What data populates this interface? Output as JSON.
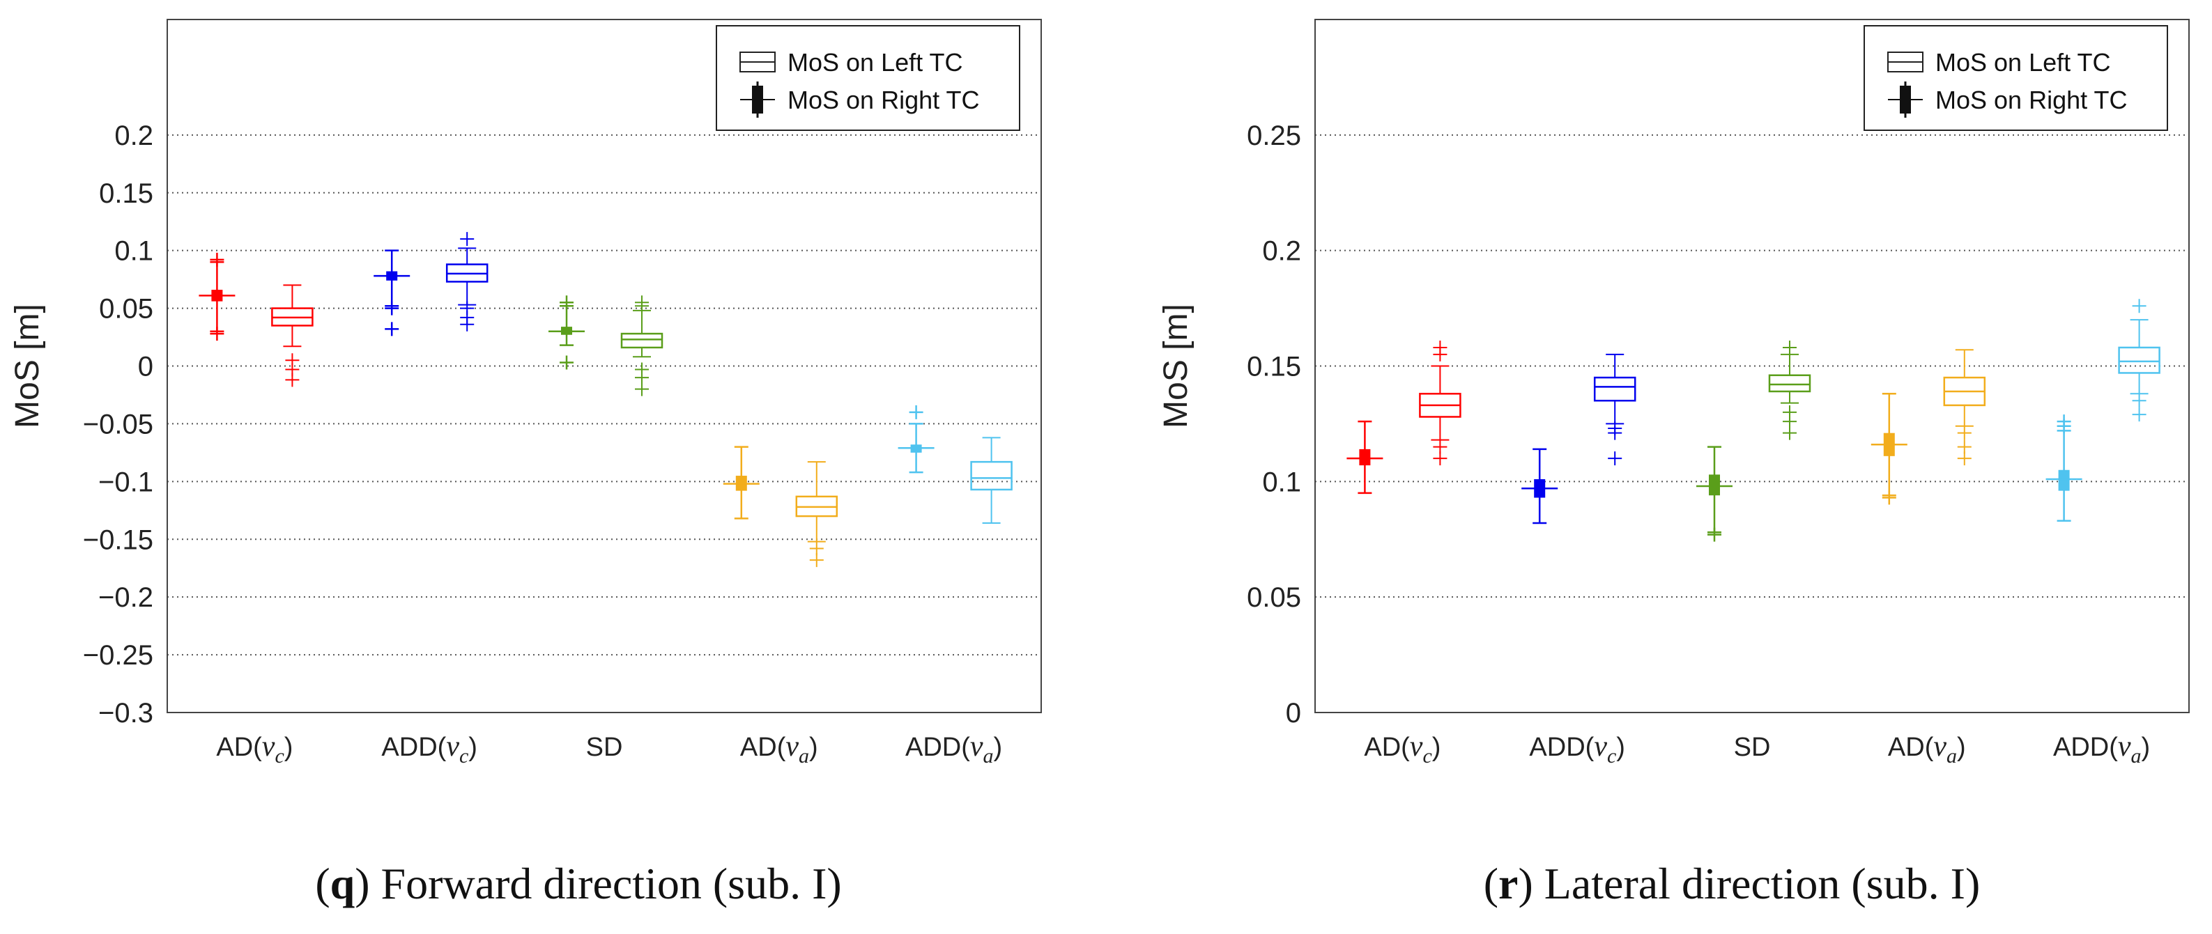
{
  "chart_data": [
    {
      "type": "box",
      "panel_letter": "q",
      "caption_text": "Forward direction (sub. I)",
      "title": "",
      "xlabel": "",
      "ylabel": "MoS [m]",
      "ylim": [
        -0.3,
        0.3
      ],
      "yticks": [
        0.2,
        0.15,
        0.1,
        0.05,
        0,
        -0.05,
        -0.1,
        -0.15,
        -0.2,
        -0.25,
        -0.3
      ],
      "ytick_labels": [
        "0.2",
        "0.15",
        "0.1",
        "0.05",
        "0",
        "−0.05",
        "−0.1",
        "−0.15",
        "−0.2",
        "−0.25",
        "−0.3"
      ],
      "grid": "horizontal dotted",
      "legend": {
        "placement": "top-right",
        "entries": [
          "MoS on Left TC",
          "MoS on Right TC"
        ]
      },
      "groups": [
        {
          "label_prefix": "AD(",
          "label_var": "v",
          "label_sub": "c",
          "label_suffix": ")",
          "color": "#ff0000",
          "right": {
            "whisker_low": 0.03,
            "q1": 0.056,
            "median": 0.061,
            "q3": 0.066,
            "whisker_high": 0.09,
            "outliers": [
              0.028,
              0.092
            ]
          },
          "left": {
            "whisker_low": 0.017,
            "q1": 0.035,
            "median": 0.042,
            "q3": 0.05,
            "whisker_high": 0.07,
            "outliers": [
              0.005,
              -0.003,
              -0.012
            ]
          }
        },
        {
          "label_prefix": "ADD(",
          "label_var": "v",
          "label_sub": "c",
          "label_suffix": ")",
          "color": "#0000ee",
          "right": {
            "whisker_low": 0.052,
            "q1": 0.074,
            "median": 0.078,
            "q3": 0.082,
            "whisker_high": 0.1,
            "outliers": [
              0.05,
              0.032
            ]
          },
          "left": {
            "whisker_low": 0.053,
            "q1": 0.073,
            "median": 0.08,
            "q3": 0.088,
            "whisker_high": 0.102,
            "outliers": [
              0.11,
              0.05,
              0.042,
              0.036
            ]
          }
        },
        {
          "label_prefix": "SD",
          "label_var": "",
          "label_sub": "",
          "label_suffix": "",
          "color": "#5a9e1a",
          "right": {
            "whisker_low": 0.018,
            "q1": 0.027,
            "median": 0.03,
            "q3": 0.034,
            "whisker_high": 0.052,
            "outliers": [
              0.003,
              0.055
            ]
          },
          "left": {
            "whisker_low": 0.008,
            "q1": 0.016,
            "median": 0.023,
            "q3": 0.028,
            "whisker_high": 0.048,
            "outliers": [
              0.052,
              0.055,
              -0.003,
              -0.01,
              -0.02
            ]
          }
        },
        {
          "label_prefix": "AD(",
          "label_var": "v",
          "label_sub": "a",
          "label_suffix": ")",
          "color": "#f2ad1c",
          "right": {
            "whisker_low": -0.132,
            "q1": -0.108,
            "median": -0.102,
            "q3": -0.095,
            "whisker_high": -0.07,
            "outliers": []
          },
          "left": {
            "whisker_low": -0.152,
            "q1": -0.13,
            "median": -0.122,
            "q3": -0.113,
            "whisker_high": -0.083,
            "outliers": [
              -0.158,
              -0.168
            ]
          }
        },
        {
          "label_prefix": "ADD(",
          "label_var": "v",
          "label_sub": "a",
          "label_suffix": ")",
          "color": "#4fc3ef",
          "right": {
            "whisker_low": -0.092,
            "q1": -0.075,
            "median": -0.071,
            "q3": -0.068,
            "whisker_high": -0.05,
            "outliers": [
              -0.04
            ]
          },
          "left": {
            "whisker_low": -0.136,
            "q1": -0.107,
            "median": -0.097,
            "q3": -0.083,
            "whisker_high": -0.062,
            "outliers": []
          }
        }
      ]
    },
    {
      "type": "box",
      "panel_letter": "r",
      "caption_text": "Lateral direction (sub. I)",
      "title": "",
      "xlabel": "",
      "ylabel": "MoS [m]",
      "ylim": [
        0,
        0.3
      ],
      "yticks": [
        0.25,
        0.2,
        0.15,
        0.1,
        0.05,
        0
      ],
      "ytick_labels": [
        "0.25",
        "0.2",
        "0.15",
        "0.1",
        "0.05",
        "0"
      ],
      "grid": "horizontal dotted",
      "legend": {
        "placement": "top-right",
        "entries": [
          "MoS on Left TC",
          "MoS on Right TC"
        ]
      },
      "groups": [
        {
          "label_prefix": "AD(",
          "label_var": "v",
          "label_sub": "c",
          "label_suffix": ")",
          "color": "#ff0000",
          "right": {
            "whisker_low": 0.095,
            "q1": 0.107,
            "median": 0.11,
            "q3": 0.114,
            "whisker_high": 0.126,
            "outliers": []
          },
          "left": {
            "whisker_low": 0.118,
            "q1": 0.128,
            "median": 0.133,
            "q3": 0.138,
            "whisker_high": 0.15,
            "outliers": [
              0.158,
              0.155,
              0.115,
              0.11
            ]
          }
        },
        {
          "label_prefix": "ADD(",
          "label_var": "v",
          "label_sub": "c",
          "label_suffix": ")",
          "color": "#0000ee",
          "right": {
            "whisker_low": 0.082,
            "q1": 0.093,
            "median": 0.097,
            "q3": 0.101,
            "whisker_high": 0.114,
            "outliers": []
          },
          "left": {
            "whisker_low": 0.125,
            "q1": 0.135,
            "median": 0.141,
            "q3": 0.145,
            "whisker_high": 0.155,
            "outliers": [
              0.123,
              0.121,
              0.11
            ]
          }
        },
        {
          "label_prefix": "SD",
          "label_var": "",
          "label_sub": "",
          "label_suffix": "",
          "color": "#5a9e1a",
          "right": {
            "whisker_low": 0.078,
            "q1": 0.094,
            "median": 0.098,
            "q3": 0.103,
            "whisker_high": 0.115,
            "outliers": [
              0.077
            ]
          },
          "left": {
            "whisker_low": 0.134,
            "q1": 0.139,
            "median": 0.142,
            "q3": 0.146,
            "whisker_high": 0.155,
            "outliers": [
              0.158,
              0.13,
              0.126,
              0.121
            ]
          }
        },
        {
          "label_prefix": "AD(",
          "label_var": "v",
          "label_sub": "a",
          "label_suffix": ")",
          "color": "#f2ad1c",
          "right": {
            "whisker_low": 0.094,
            "q1": 0.111,
            "median": 0.116,
            "q3": 0.121,
            "whisker_high": 0.138,
            "outliers": [
              0.093
            ]
          },
          "left": {
            "whisker_low": 0.124,
            "q1": 0.133,
            "median": 0.139,
            "q3": 0.145,
            "whisker_high": 0.157,
            "outliers": [
              0.121,
              0.115,
              0.11
            ]
          }
        },
        {
          "label_prefix": "ADD(",
          "label_var": "v",
          "label_sub": "a",
          "label_suffix": ")",
          "color": "#4fc3ef",
          "right": {
            "whisker_low": 0.083,
            "q1": 0.096,
            "median": 0.101,
            "q3": 0.105,
            "whisker_high": 0.122,
            "outliers": [
              0.126,
              0.124
            ]
          },
          "left": {
            "whisker_low": 0.138,
            "q1": 0.147,
            "median": 0.152,
            "q3": 0.158,
            "whisker_high": 0.17,
            "outliers": [
              0.176,
              0.135,
              0.129
            ]
          }
        }
      ]
    }
  ]
}
